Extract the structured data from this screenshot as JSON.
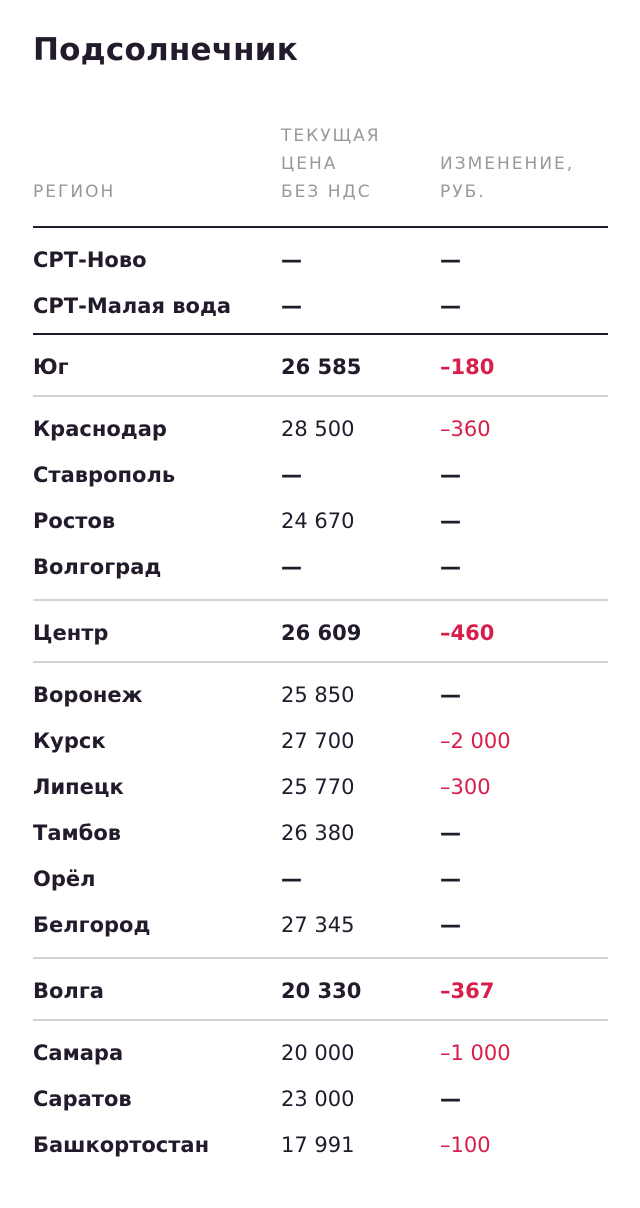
{
  "title": "Подсолнечник",
  "headers": {
    "region": "РЕГИОН",
    "price": [
      "ТЕКУЩАЯ",
      "ЦЕНА",
      "БЕЗ НДС"
    ],
    "change": [
      "ИЗМЕНЕНИЕ,",
      "РУБ."
    ]
  },
  "colors": {
    "text": "#231b2b",
    "muted": "#9a979c",
    "negative": "#d81e4a",
    "divider": "#d4d2d5"
  },
  "srt": [
    {
      "region": "СРТ-Ново",
      "price": "—",
      "change": "—"
    },
    {
      "region": "СРТ-Малая вода",
      "price": "—",
      "change": "—"
    }
  ],
  "groups": [
    {
      "total": {
        "region": "Юг",
        "price": "26 585",
        "change": "–180"
      },
      "rows": [
        {
          "region": "Краснодар",
          "price": "28 500",
          "change": "–360"
        },
        {
          "region": "Ставрополь",
          "price": "—",
          "change": "—"
        },
        {
          "region": "Ростов",
          "price": "24 670",
          "change": "—"
        },
        {
          "region": "Волгоград",
          "price": "—",
          "change": "—"
        }
      ]
    },
    {
      "total": {
        "region": "Центр",
        "price": "26 609",
        "change": "–460"
      },
      "rows": [
        {
          "region": "Воронеж",
          "price": "25 850",
          "change": "—"
        },
        {
          "region": "Курск",
          "price": "27 700",
          "change": "–2 000"
        },
        {
          "region": "Липецк",
          "price": "25 770",
          "change": "–300"
        },
        {
          "region": "Тамбов",
          "price": "26 380",
          "change": "—"
        },
        {
          "region": "Орёл",
          "price": "—",
          "change": "—"
        },
        {
          "region": "Белгород",
          "price": "27 345",
          "change": "—"
        }
      ]
    },
    {
      "total": {
        "region": "Волга",
        "price": "20 330",
        "change": "–367"
      },
      "rows": [
        {
          "region": "Самара",
          "price": "20 000",
          "change": "–1 000"
        },
        {
          "region": "Саратов",
          "price": "23 000",
          "change": "—"
        },
        {
          "region": "Башкортостан",
          "price": "17 991",
          "change": "–100"
        }
      ]
    }
  ]
}
